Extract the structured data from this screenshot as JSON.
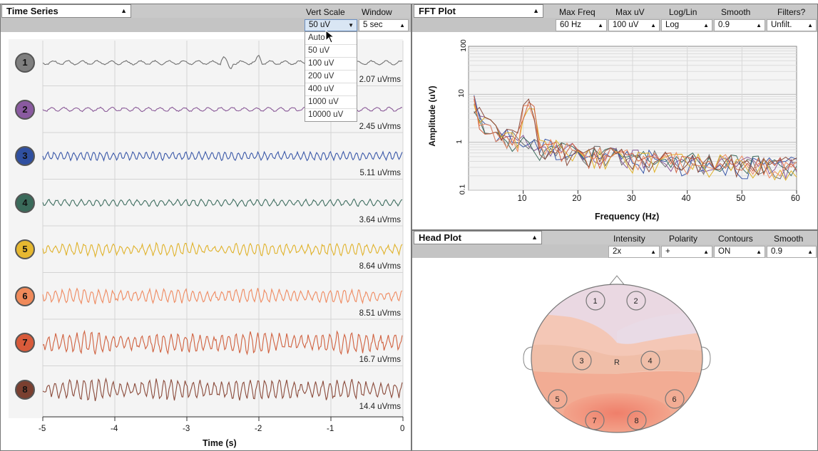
{
  "time_series": {
    "title": "Time Series",
    "vert_scale_label": "Vert Scale",
    "window_label": "Window",
    "vert_scale_value": "50 uV",
    "window_value": "5 sec",
    "vert_scale_options": [
      "Auto",
      "50 uV",
      "100 uV",
      "200 uV",
      "400 uV",
      "1000 uV",
      "10000 uV"
    ],
    "channels": [
      {
        "num": "1",
        "rms": "2.07 uVrms",
        "color": "#7f7f7f",
        "line": "#707070"
      },
      {
        "num": "2",
        "rms": "2.45 uVrms",
        "color": "#8a5aa0",
        "line": "#8a5a98"
      },
      {
        "num": "3",
        "rms": "5.11 uVrms",
        "color": "#2f4fa0",
        "line": "#3a58a8"
      },
      {
        "num": "4",
        "rms": "3.64 uVrms",
        "color": "#3a6a5a",
        "line": "#3f6e60"
      },
      {
        "num": "5",
        "rms": "8.64 uVrms",
        "color": "#e6b830",
        "line": "#e0b22a"
      },
      {
        "num": "6",
        "rms": "8.51 uVrms",
        "color": "#f08a5a",
        "line": "#ef8a60"
      },
      {
        "num": "7",
        "rms": "16.7 uVrms",
        "color": "#d85a3a",
        "line": "#d0613f"
      },
      {
        "num": "8",
        "rms": "14.4 uVrms",
        "color": "#7a3f30",
        "line": "#8a4a3a"
      }
    ],
    "x_ticks": [
      "-5",
      "-4",
      "-3",
      "-2",
      "-1",
      "0"
    ],
    "x_title": "Time (s)"
  },
  "fft": {
    "title": "FFT Plot",
    "labels": [
      "Max Freq",
      "Max uV",
      "Log/Lin",
      "Smooth",
      "Filters?"
    ],
    "values": [
      "60 Hz",
      "100 uV",
      "Log",
      "0.9",
      "Unfilt."
    ],
    "x_ticks": [
      "10",
      "20",
      "30",
      "40",
      "50",
      "60"
    ],
    "y_ticks": [
      "100",
      "10",
      "1",
      "0.1"
    ],
    "x_title": "Frequency (Hz)",
    "y_title": "Amplitude (uV)"
  },
  "head_plot": {
    "title": "Head Plot",
    "labels": [
      "Intensity",
      "Polarity",
      "Contours",
      "Smooth"
    ],
    "values": [
      "2x",
      "+",
      "ON",
      "0.9"
    ],
    "electrodes": [
      "1",
      "2",
      "3",
      "4",
      "5",
      "6",
      "7",
      "8"
    ],
    "ref_label": "R"
  },
  "icons": {
    "caret": "▲",
    "cursor": "pointer-cursor-icon"
  }
}
